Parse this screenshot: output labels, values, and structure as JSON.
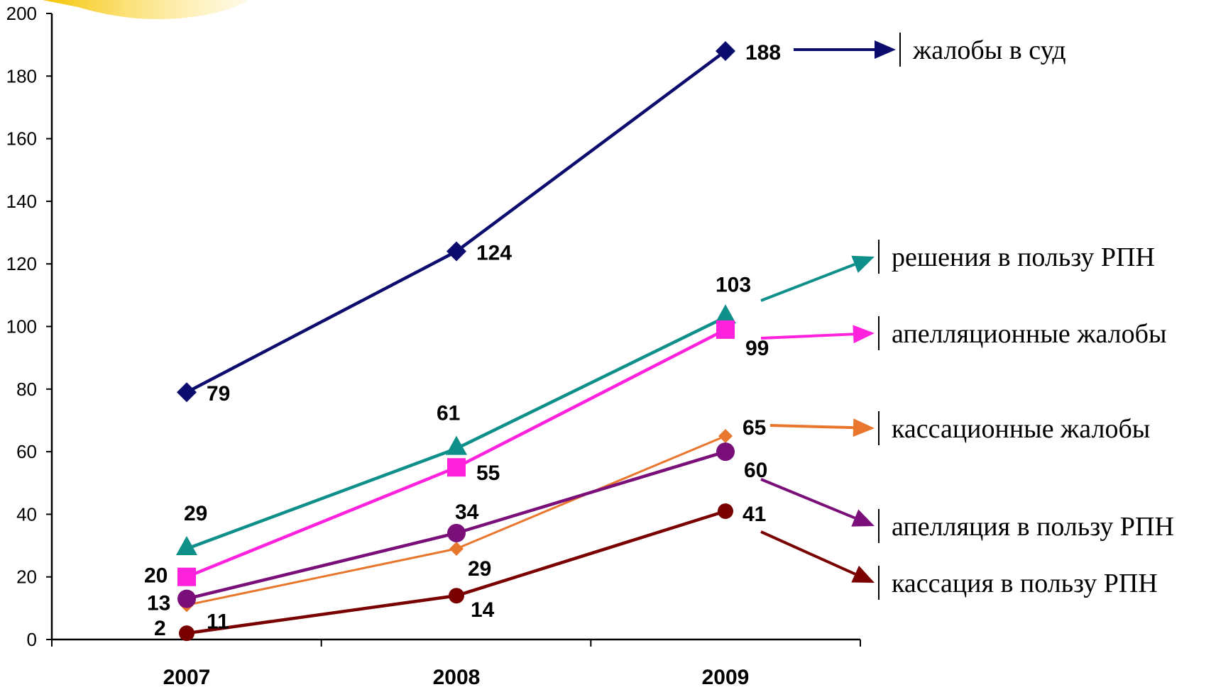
{
  "chart_data": {
    "type": "line",
    "categories": [
      "2007",
      "2008",
      "2009"
    ],
    "ylim": [
      0,
      200
    ],
    "yticks": [
      "0",
      "20",
      "40",
      "60",
      "80",
      "100",
      "120",
      "140",
      "160",
      "180",
      "200"
    ],
    "grid": false,
    "legend_placement": "right",
    "series": [
      {
        "name": "жалобы в суд",
        "values": [
          79,
          124,
          188
        ],
        "color": "#0c0c6e",
        "marker": "diamond"
      },
      {
        "name": "решения в пользу РПН",
        "values": [
          29,
          61,
          103
        ],
        "color": "#0f8f8a",
        "marker": "triangle"
      },
      {
        "name": "апелляционные жалобы",
        "values": [
          20,
          55,
          99
        ],
        "color": "#ff22dd",
        "marker": "square"
      },
      {
        "name": "кассационные жалобы",
        "values": [
          11,
          29,
          65
        ],
        "color": "#e8762c",
        "marker": "small-diamond"
      },
      {
        "name": "апелляция в пользу РПН",
        "values": [
          13,
          34,
          60
        ],
        "color": "#7a0f7a",
        "marker": "circle"
      },
      {
        "name": "кассация в пользу РПН",
        "values": [
          2,
          14,
          41
        ],
        "color": "#7a0000",
        "marker": "circle"
      }
    ]
  }
}
